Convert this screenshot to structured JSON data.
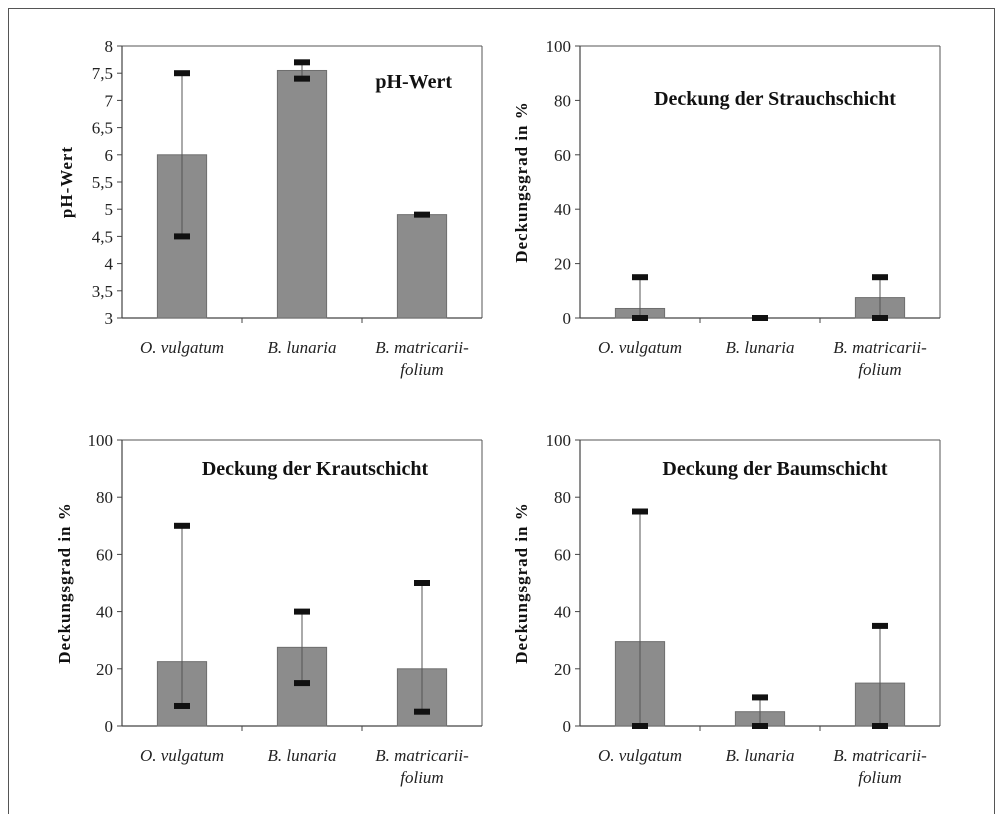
{
  "chart_data": [
    {
      "type": "bar",
      "title": "pH-Wert",
      "ylabel": "pH-Wert",
      "xlabel": "",
      "categories": [
        "O. vulgatum",
        "B. lunaria",
        "B. matricarii-folium"
      ],
      "category_lines": [
        [
          "O. vulgatum"
        ],
        [
          "B. lunaria"
        ],
        [
          "B. matricarii-",
          "folium"
        ]
      ],
      "values": [
        6.0,
        7.55,
        4.9
      ],
      "error_low": [
        4.5,
        7.4,
        4.9
      ],
      "error_high": [
        7.5,
        7.7,
        4.9
      ],
      "ylim": [
        3,
        8
      ],
      "yticks": [
        3,
        3.5,
        4,
        4.5,
        5,
        5.5,
        6,
        6.5,
        7,
        7.5,
        8
      ],
      "ytick_labels": [
        "3",
        "3,5",
        "4",
        "4,5",
        "5",
        "5,5",
        "6",
        "6,5",
        "7",
        "7,5",
        "8"
      ],
      "title_position": "top-right",
      "grid": false,
      "bar_color": "#8c8c8c"
    },
    {
      "type": "bar",
      "title": "Deckung der Strauchschicht",
      "ylabel": "Deckungsgrad in %",
      "xlabel": "",
      "categories": [
        "O. vulgatum",
        "B. lunaria",
        "B. matricarii-folium"
      ],
      "category_lines": [
        [
          "O. vulgatum"
        ],
        [
          "B. lunaria"
        ],
        [
          "B. matricarii-",
          "folium"
        ]
      ],
      "values": [
        3.5,
        0,
        7.5
      ],
      "error_low": [
        0,
        0,
        0
      ],
      "error_high": [
        15,
        0,
        15
      ],
      "ylim": [
        0,
        100
      ],
      "yticks": [
        0,
        20,
        40,
        60,
        80,
        100
      ],
      "ytick_labels": [
        "0",
        "20",
        "40",
        "60",
        "80",
        "100"
      ],
      "title_position": "top-center",
      "grid": false,
      "bar_color": "#8c8c8c"
    },
    {
      "type": "bar",
      "title": "Deckung der Krautschicht",
      "ylabel": "Deckungsgrad in %",
      "xlabel": "",
      "categories": [
        "O. vulgatum",
        "B. lunaria",
        "B. matricarii-folium"
      ],
      "category_lines": [
        [
          "O. vulgatum"
        ],
        [
          "B. lunaria"
        ],
        [
          "B. matricarii-",
          "folium"
        ]
      ],
      "values": [
        22.5,
        27.5,
        20
      ],
      "error_low": [
        7,
        15,
        5
      ],
      "error_high": [
        70,
        40,
        50
      ],
      "ylim": [
        0,
        100
      ],
      "yticks": [
        0,
        20,
        40,
        60,
        80,
        100
      ],
      "ytick_labels": [
        "0",
        "20",
        "40",
        "60",
        "80",
        "100"
      ],
      "title_position": "top-center",
      "grid": false,
      "bar_color": "#8c8c8c"
    },
    {
      "type": "bar",
      "title": "Deckung der Baumschicht",
      "ylabel": "Deckungsgrad in %",
      "xlabel": "",
      "categories": [
        "O. vulgatum",
        "B. lunaria",
        "B. matricarii-folium"
      ],
      "category_lines": [
        [
          "O. vulgatum"
        ],
        [
          "B. lunaria"
        ],
        [
          "B. matricarii-",
          "folium"
        ]
      ],
      "values": [
        29.5,
        5,
        15
      ],
      "error_low": [
        0,
        0,
        0
      ],
      "error_high": [
        75,
        10,
        35
      ],
      "ylim": [
        0,
        100
      ],
      "yticks": [
        0,
        20,
        40,
        60,
        80,
        100
      ],
      "ytick_labels": [
        "0",
        "20",
        "40",
        "60",
        "80",
        "100"
      ],
      "title_position": "top-center",
      "grid": false,
      "bar_color": "#8c8c8c"
    }
  ]
}
